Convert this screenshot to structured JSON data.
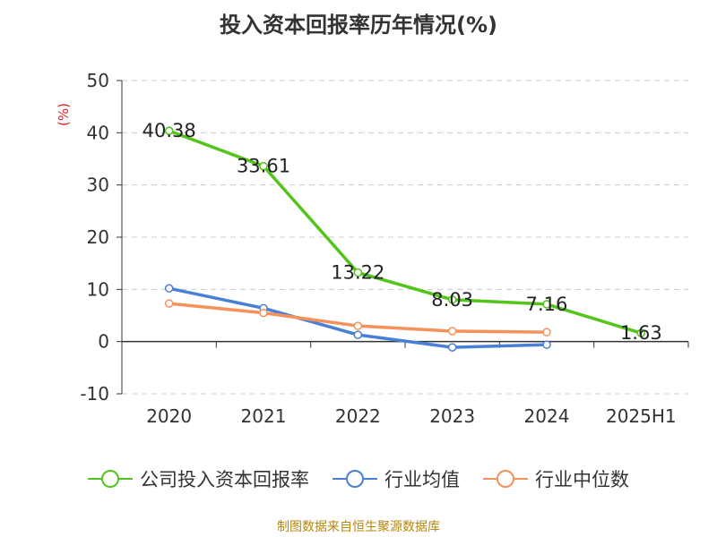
{
  "chart_data": {
    "type": "line",
    "title": "投入资本回报率历年情况(%)",
    "ylabel": "(%)",
    "xlabel": "",
    "categories": [
      "2020",
      "2021",
      "2022",
      "2023",
      "2024",
      "2025H1"
    ],
    "ylim": [
      -10,
      50
    ],
    "yticks": [
      50,
      40,
      30,
      20,
      10,
      0,
      -10
    ],
    "grid": true,
    "legend_position": "bottom",
    "series": [
      {
        "name": "公司投入资本回报率",
        "color": "#52c41a",
        "values": [
          40.38,
          33.61,
          13.22,
          8.03,
          7.16,
          1.63
        ],
        "labels": [
          "40.38",
          "33.61",
          "13.22",
          "8.03",
          "7.16",
          "1.63"
        ]
      },
      {
        "name": "行业均值",
        "color": "#4a7fd6",
        "values": [
          10.2,
          6.4,
          1.3,
          -1.1,
          -0.6,
          null
        ]
      },
      {
        "name": "行业中位数",
        "color": "#f5915a",
        "values": [
          7.3,
          5.5,
          3.0,
          2.0,
          1.8,
          null
        ]
      }
    ]
  },
  "source": "制图数据来自恒生聚源数据库"
}
